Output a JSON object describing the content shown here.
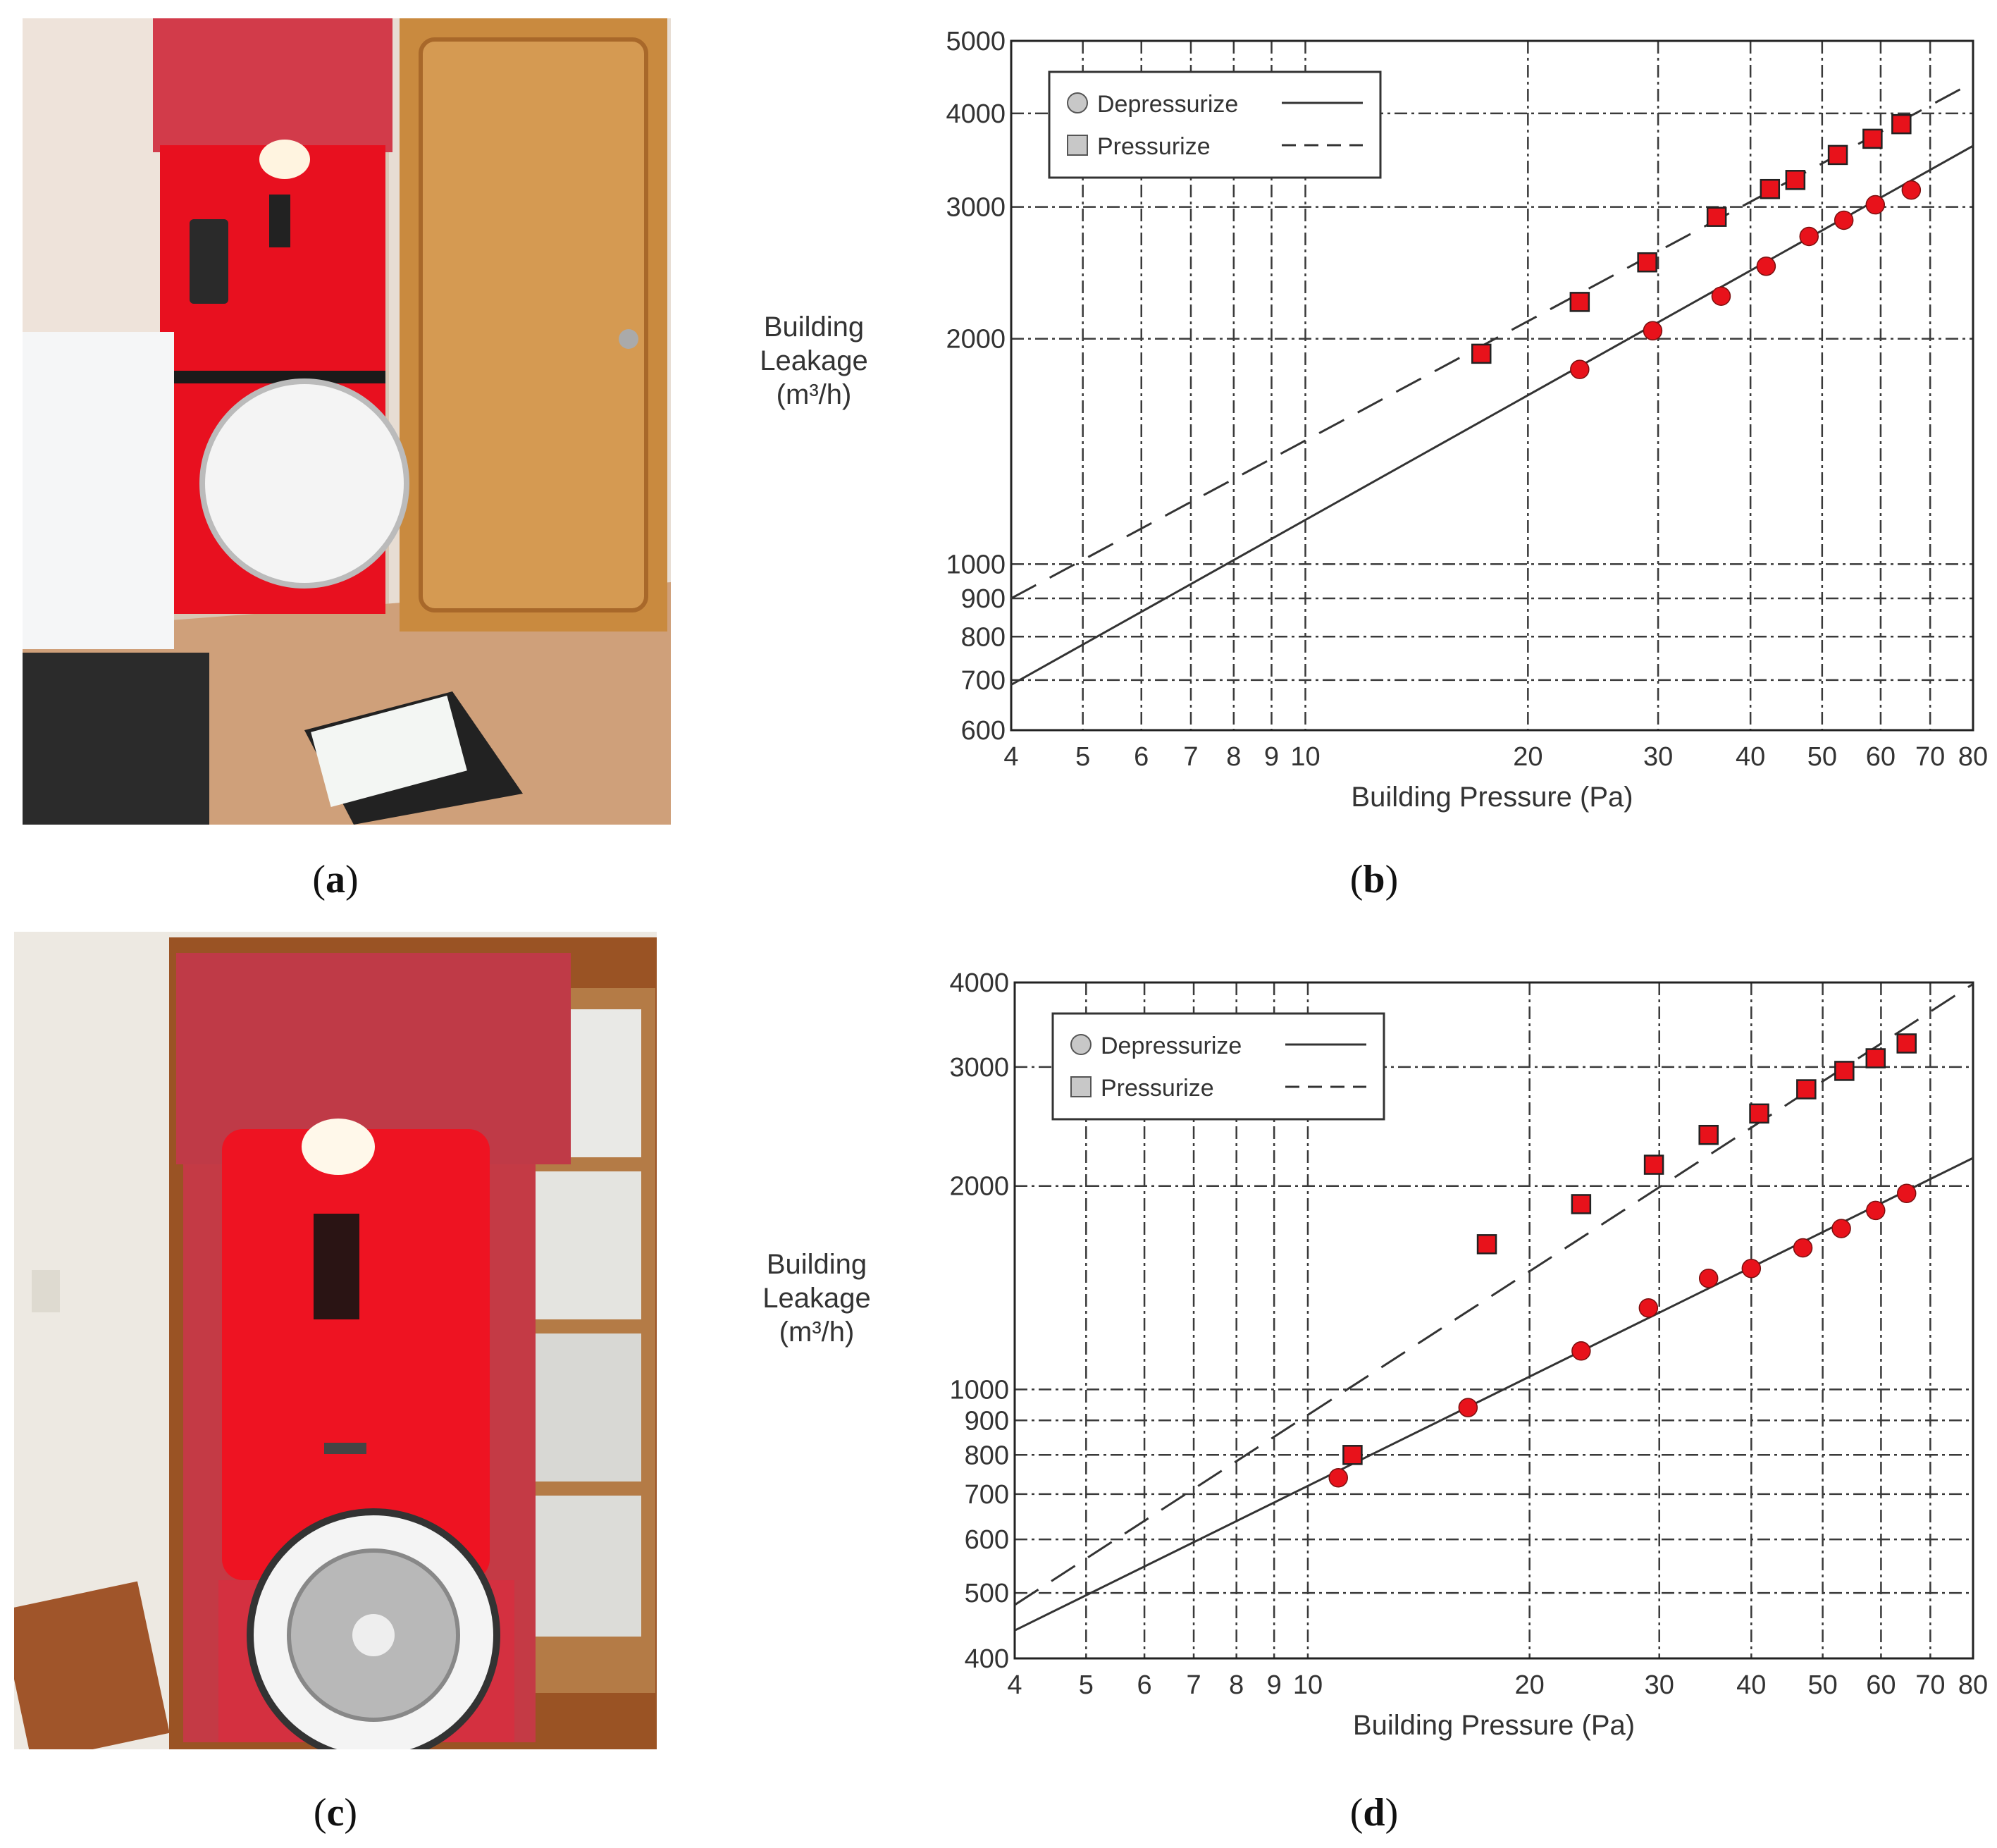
{
  "panels": [
    {
      "id": "a",
      "caption": "a",
      "kind": "photo",
      "description_icon": "blower-door-photo"
    },
    {
      "id": "b",
      "caption": "b",
      "kind": "chart"
    },
    {
      "id": "c",
      "caption": "c",
      "kind": "photo",
      "description_icon": "blower-door-photo"
    },
    {
      "id": "d",
      "caption": "d",
      "kind": "chart"
    }
  ],
  "chart_data": [
    {
      "panel": "b",
      "type": "scatter",
      "title": "",
      "xlabel": "Building Pressure (Pa)",
      "ylabel_lines": [
        "Building",
        "Leakage",
        "(m³/h)"
      ],
      "xscale": "log",
      "yscale": "log",
      "xlim": [
        4,
        80
      ],
      "ylim": [
        600,
        5000
      ],
      "xticks": [
        4,
        5,
        6,
        7,
        8,
        9,
        10,
        20,
        30,
        40,
        50,
        60,
        70,
        80
      ],
      "yticks": [
        600,
        700,
        800,
        900,
        1000,
        2000,
        3000,
        4000,
        5000
      ],
      "grid": true,
      "legend_position": "top-left",
      "legend": [
        {
          "label": "Depressurize",
          "marker": "circle",
          "line": "solid"
        },
        {
          "label": "Pressurize",
          "marker": "square",
          "line": "dashed"
        }
      ],
      "series": [
        {
          "name": "Depressurize",
          "marker": "circle",
          "color": "#e8121b",
          "points": [
            [
              23.5,
              1820
            ],
            [
              29.5,
              2050
            ],
            [
              36.5,
              2280
            ],
            [
              42,
              2500
            ],
            [
              48,
              2740
            ],
            [
              53.5,
              2880
            ],
            [
              59,
              3020
            ],
            [
              66,
              3160
            ]
          ],
          "fit": {
            "from": [
              4,
              690
            ],
            "to": [
              80,
              3620
            ]
          }
        },
        {
          "name": "Pressurize",
          "marker": "square",
          "color": "#e8121b",
          "points": [
            [
              17.3,
              1910
            ],
            [
              23.5,
              2240
            ],
            [
              29,
              2530
            ],
            [
              36,
              2910
            ],
            [
              42.5,
              3170
            ],
            [
              46,
              3260
            ],
            [
              52.5,
              3520
            ],
            [
              58.5,
              3700
            ],
            [
              64,
              3870
            ]
          ],
          "fit": {
            "from": [
              4,
              900
            ],
            "to": [
              80,
              4400
            ]
          }
        }
      ]
    },
    {
      "panel": "d",
      "type": "scatter",
      "title": "",
      "xlabel": "Building Pressure (Pa)",
      "ylabel_lines": [
        "Building",
        "Leakage",
        "(m³/h)"
      ],
      "xscale": "log",
      "yscale": "log",
      "xlim": [
        4,
        80
      ],
      "ylim": [
        400,
        4000
      ],
      "xticks": [
        4,
        5,
        6,
        7,
        8,
        9,
        10,
        20,
        30,
        40,
        50,
        60,
        70,
        80
      ],
      "yticks": [
        400,
        500,
        600,
        700,
        800,
        900,
        1000,
        2000,
        3000,
        4000
      ],
      "grid": true,
      "legend_position": "top-left",
      "legend": [
        {
          "label": "Depressurize",
          "marker": "circle",
          "line": "solid"
        },
        {
          "label": "Pressurize",
          "marker": "square",
          "line": "dashed"
        }
      ],
      "series": [
        {
          "name": "Depressurize",
          "marker": "circle",
          "color": "#e8121b",
          "points": [
            [
              11,
              740
            ],
            [
              16.5,
              940
            ],
            [
              23.5,
              1140
            ],
            [
              29,
              1320
            ],
            [
              35,
              1460
            ],
            [
              40,
              1510
            ],
            [
              47,
              1620
            ],
            [
              53,
              1730
            ],
            [
              59,
              1840
            ],
            [
              65,
              1950
            ]
          ],
          "fit": {
            "from": [
              4,
              440
            ],
            "to": [
              80,
              2200
            ]
          }
        },
        {
          "name": "Pressurize",
          "marker": "square",
          "color": "#e8121b",
          "points": [
            [
              11.5,
              800
            ],
            [
              17.5,
              1640
            ],
            [
              23.5,
              1880
            ],
            [
              29.5,
              2150
            ],
            [
              35,
              2380
            ],
            [
              41,
              2560
            ],
            [
              47.5,
              2780
            ],
            [
              53.5,
              2960
            ],
            [
              59,
              3090
            ],
            [
              65,
              3250
            ]
          ],
          "fit": {
            "from": [
              4,
              480
            ],
            "to": [
              80,
              3980
            ]
          }
        }
      ]
    }
  ]
}
